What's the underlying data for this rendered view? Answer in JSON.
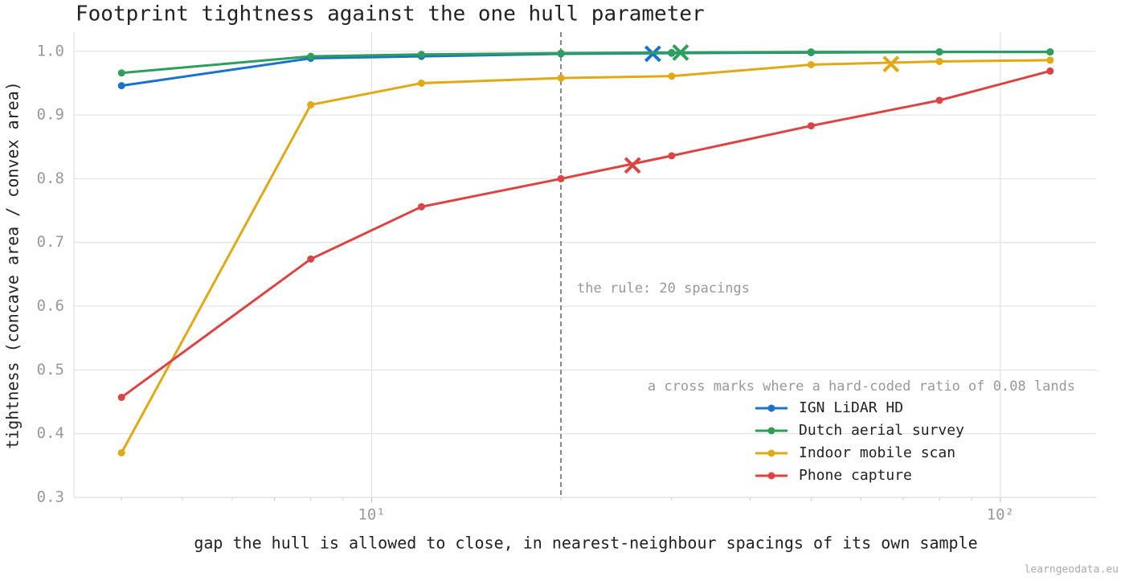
{
  "chart_data": {
    "type": "line",
    "title": "Footprint tightness against the one hull parameter",
    "x_label": "gap the hull is allowed to close, in nearest-neighbour spacings of its own sample",
    "y_label": "tightness (concave area / convex area)",
    "x": [
      4,
      8,
      12,
      20,
      30,
      50,
      80,
      120
    ],
    "log_x": true,
    "xlim": [
      3.36,
      142
    ],
    "xticks": [
      {
        "value": 10,
        "label": "10¹"
      },
      {
        "value": 100,
        "label": "10²"
      }
    ],
    "xminorticks": [
      4,
      5,
      6,
      7,
      8,
      9,
      20,
      30,
      40,
      50,
      60,
      70,
      80,
      90
    ],
    "ylim": [
      0.3,
      1.03
    ],
    "yticks": [
      0.3,
      0.4,
      0.5,
      0.6,
      0.7,
      0.8,
      0.9,
      {
        "value": 1,
        "label": "1.0"
      }
    ],
    "grid": true,
    "reference_line": {
      "x": 20,
      "label": "the rule: 20 spacings"
    },
    "legend_title": "a cross marks where a hard-coded ratio of 0.08 lands",
    "legend_position": "lower right",
    "series": [
      {
        "name": "IGN LiDAR HD",
        "color": "#1a73c8",
        "values": [
          0.946,
          0.989,
          0.992,
          0.996,
          0.997,
          0.998,
          0.999,
          0.999
        ],
        "cross": {
          "x": 28,
          "y": 0.996
        }
      },
      {
        "name": "Dutch aerial survey",
        "color": "#2e9e5b",
        "values": [
          0.966,
          0.992,
          0.995,
          0.997,
          0.998,
          0.999,
          0.999,
          0.999
        ],
        "cross": {
          "x": 31,
          "y": 0.998
        }
      },
      {
        "name": "Indoor mobile scan",
        "color": "#e0a915",
        "values": [
          0.37,
          0.916,
          0.95,
          0.958,
          0.961,
          0.979,
          0.984,
          0.986
        ],
        "cross": {
          "x": 67,
          "y": 0.98
        }
      },
      {
        "name": "Phone capture",
        "color": "#dc4444",
        "values": [
          0.457,
          0.674,
          0.756,
          0.8,
          0.836,
          0.883,
          0.923,
          0.969
        ],
        "cross": {
          "x": 26,
          "y": 0.821
        }
      }
    ]
  },
  "footer": "learngeodata.eu"
}
